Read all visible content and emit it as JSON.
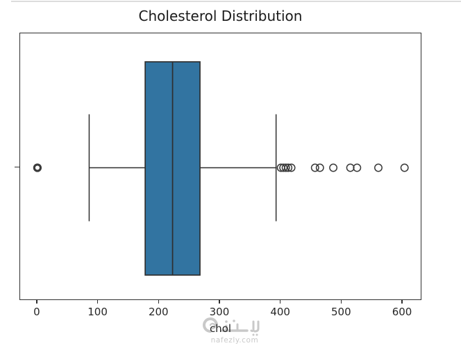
{
  "page": {
    "watermark": {
      "site": "nafezly.com",
      "logo": "nafezly-arabic-logo"
    }
  },
  "chart_data": {
    "type": "boxplot",
    "orientation": "horizontal",
    "title": "Cholesterol Distribution",
    "xlabel": "chol",
    "ylabel": "",
    "variable": "chol",
    "grid": false,
    "legend": false,
    "xticks": [
      0,
      100,
      200,
      300,
      400,
      500,
      600
    ],
    "xlim": [
      -28.4,
      629.6
    ],
    "stats": {
      "whisker_low": 85,
      "q1": 177,
      "median": 222,
      "q3": 267,
      "whisker_high": 392
    },
    "outliers": [
      0,
      400,
      404,
      408,
      412,
      417,
      456,
      464,
      486,
      514,
      525,
      560,
      603
    ],
    "outlier_note": "value 0 drawn as bold ring (multiple overlapping points)",
    "colors": {
      "box_fill": "#3274a1",
      "line": "#2f2f2f",
      "flier_edge": "#3a3a3a",
      "watermark": "#c9c9c9"
    }
  }
}
